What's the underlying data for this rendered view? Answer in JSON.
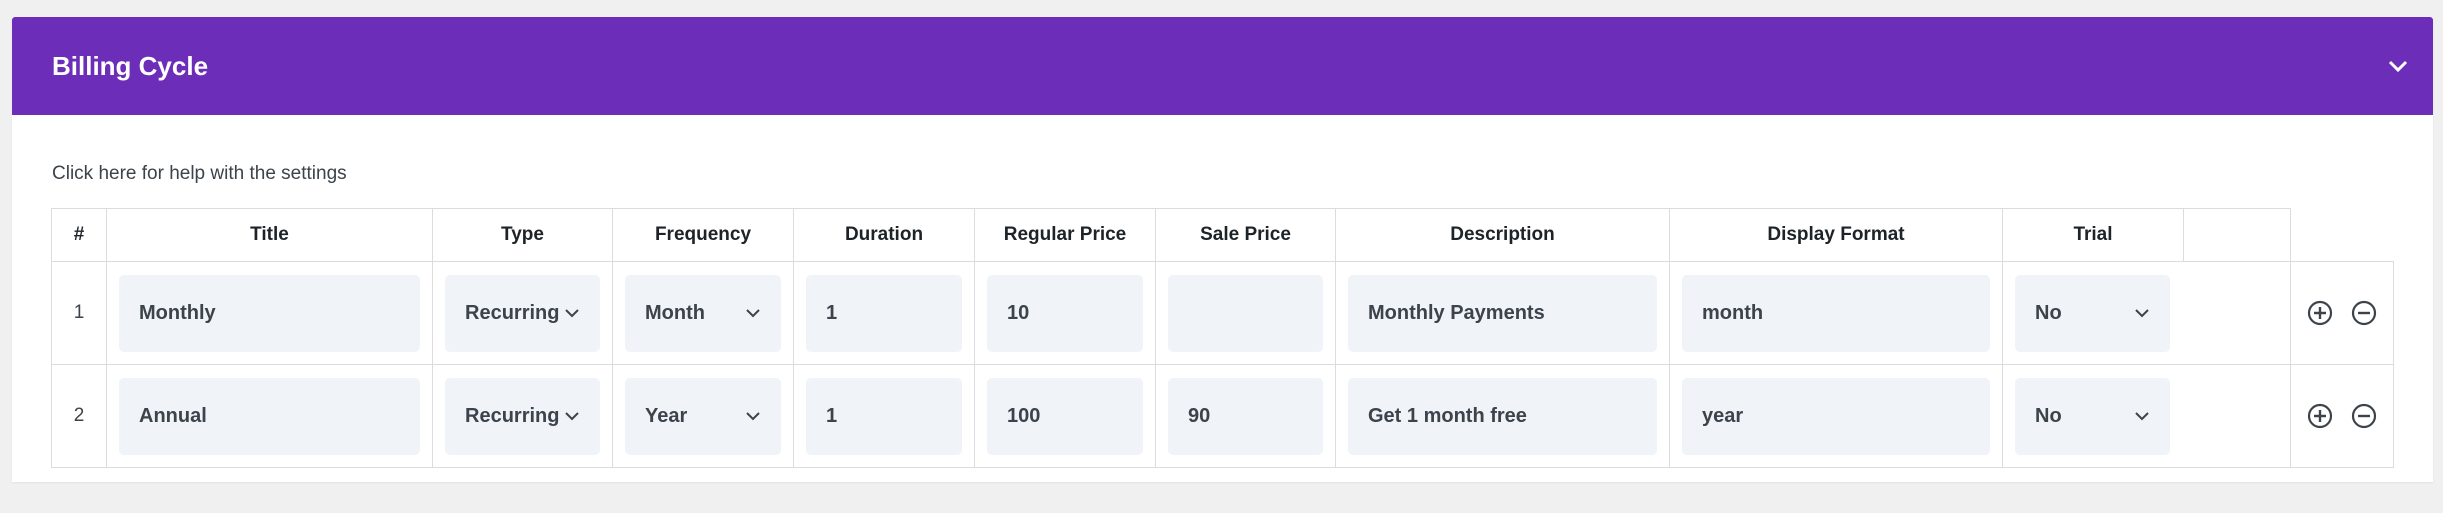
{
  "panel": {
    "title": "Billing Cycle",
    "collapse_icon": "chevron-down-icon",
    "accent_color": "#6c2eb9"
  },
  "help_link": "Click here for help with the settings",
  "table": {
    "headers": [
      "#",
      "Title",
      "Type",
      "Frequency",
      "Duration",
      "Regular Price",
      "Sale Price",
      "Description",
      "Display Format",
      "Trial"
    ],
    "rows": [
      {
        "num": "1",
        "title": "Monthly",
        "type": "Recurring",
        "frequency": "Month",
        "duration": "1",
        "regular_price": "10",
        "sale_price": "",
        "description": "Monthly Payments",
        "display_format": "month",
        "trial": "No"
      },
      {
        "num": "2",
        "title": "Annual",
        "type": "Recurring",
        "frequency": "Year",
        "duration": "1",
        "regular_price": "100",
        "sale_price": "90",
        "description": "Get 1 month free",
        "display_format": "year",
        "trial": "No"
      }
    ]
  }
}
